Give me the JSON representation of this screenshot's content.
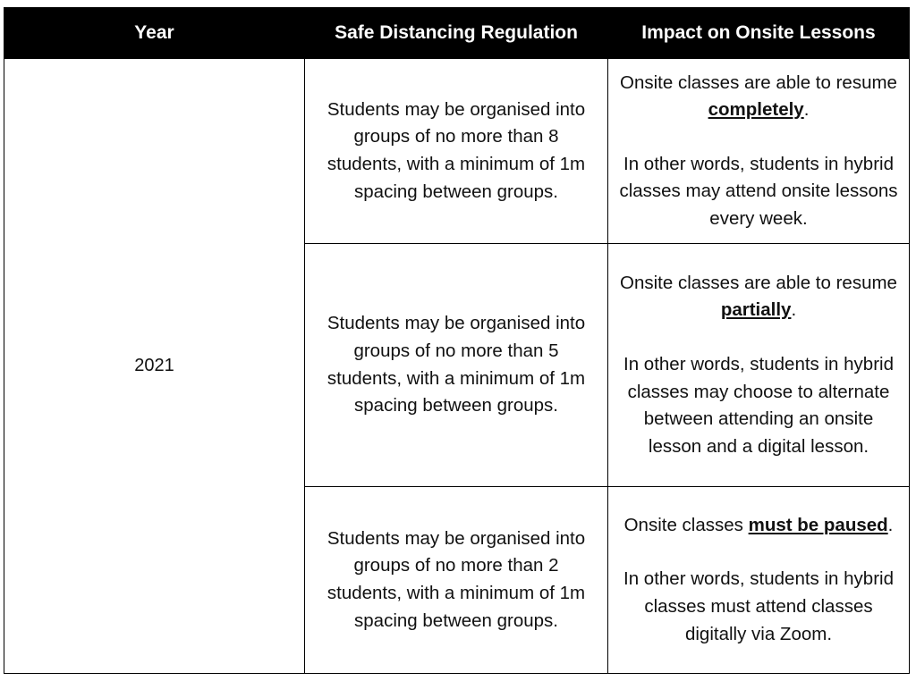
{
  "header": {
    "year": "Year",
    "regulation": "Safe Distancing Regulation",
    "impact": "Impact on Onsite Lessons"
  },
  "year_value": "2021",
  "rows": [
    {
      "regulation": "Students may be organised into groups of no more than 8 students, with a minimum of 1m spacing between groups.",
      "impact_pre": "Onsite classes are able to resume ",
      "impact_emph": "completely",
      "impact_post": ".",
      "impact_detail": "In other words, students in hybrid classes may attend onsite lessons every week."
    },
    {
      "regulation": "Students may be organised into groups of no more than 5 students, with a minimum of 1m spacing between groups.",
      "impact_pre": "Onsite classes are able to resume ",
      "impact_emph": "partially",
      "impact_post": ".",
      "impact_detail": "In other words, students in hybrid classes may choose to alternate between attending an onsite lesson and a digital lesson."
    },
    {
      "regulation": "Students may be organised into groups of no more than 2 students, with a minimum of 1m spacing between groups.",
      "impact_pre": "Onsite classes ",
      "impact_emph": "must be paused",
      "impact_post": ".",
      "impact_detail": "In other words, students in hybrid classes must attend classes digitally via Zoom."
    }
  ]
}
